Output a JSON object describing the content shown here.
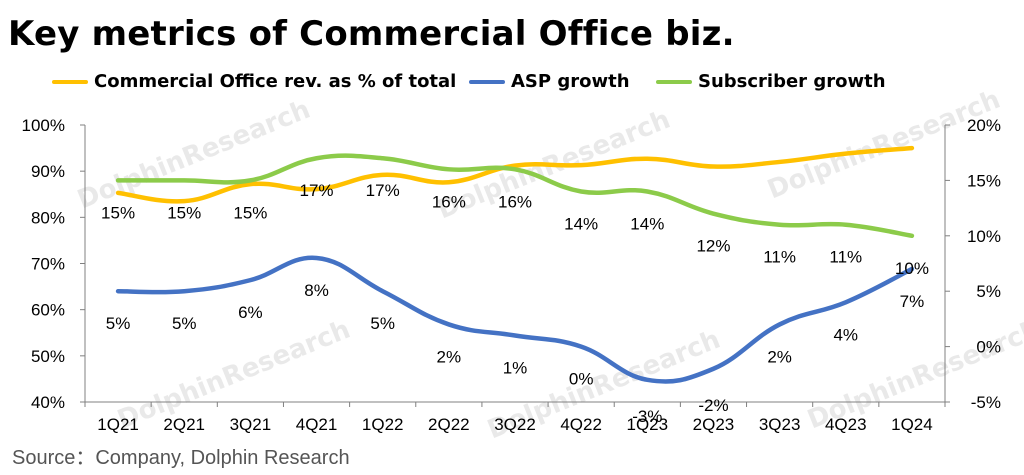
{
  "title": "Key metrics of Commercial Office biz.",
  "source": "Source：Company, Dolphin Research",
  "watermark": "DolphinResearch",
  "chart_data": {
    "type": "line",
    "categories": [
      "1Q21",
      "2Q21",
      "3Q21",
      "4Q21",
      "1Q22",
      "2Q22",
      "3Q22",
      "4Q22",
      "1Q23",
      "2Q23",
      "3Q23",
      "4Q23",
      "1Q24"
    ],
    "left_axis": {
      "ticks": [
        "40%",
        "50%",
        "60%",
        "70%",
        "80%",
        "90%",
        "100%"
      ],
      "min": 40,
      "max": 100
    },
    "right_axis": {
      "ticks": [
        "-5%",
        "0%",
        "5%",
        "10%",
        "15%",
        "20%"
      ],
      "min": -5,
      "max": 20
    },
    "grid": false,
    "legend_position": "top",
    "series": [
      {
        "name": "Commercial Office rev. as % of total",
        "axis": "left",
        "color": "#FFC000",
        "values": [
          85.3,
          83.5,
          87.2,
          86.1,
          89.2,
          87.6,
          91.2,
          91.3,
          92.7,
          91.0,
          92.0,
          93.8,
          95.0
        ],
        "labels": []
      },
      {
        "name": "ASP growth",
        "axis": "right",
        "color": "#4472C4",
        "values": [
          5,
          5,
          6,
          8,
          5,
          2,
          1,
          0,
          -3,
          -2,
          2,
          4,
          7
        ],
        "labels": [
          "5%",
          "5%",
          "6%",
          "8%",
          "5%",
          "2%",
          "1%",
          "0%",
          "-3%",
          "-2%",
          "2%",
          "4%",
          "7%"
        ]
      },
      {
        "name": "Subscriber growth",
        "axis": "right",
        "color": "#8CCB4A",
        "values": [
          15,
          15,
          15,
          17,
          17,
          16,
          16,
          14,
          14,
          12,
          11,
          11,
          10
        ],
        "labels": [
          "15%",
          "15%",
          "15%",
          "17%",
          "17%",
          "16%",
          "16%",
          "14%",
          "14%",
          "12%",
          "11%",
          "11%",
          "10%"
        ]
      }
    ]
  }
}
